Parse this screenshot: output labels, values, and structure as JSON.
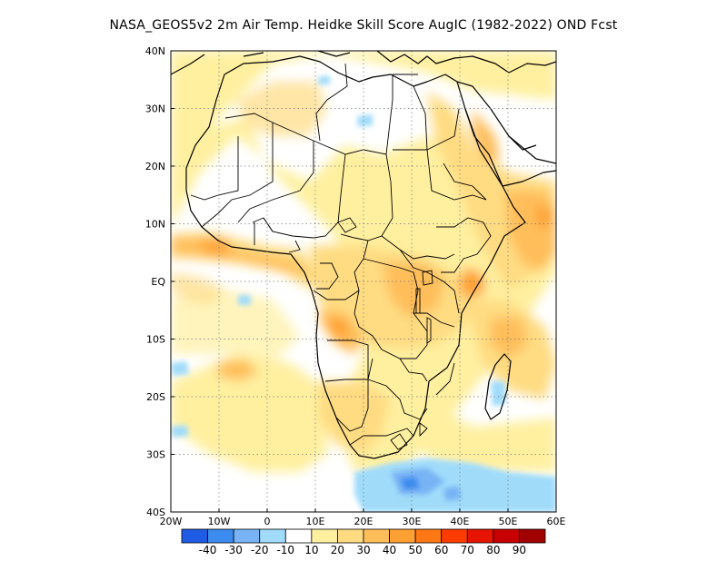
{
  "title": "NASA_GEOS5v2  2m Air Temp. Heidke Skill Score AugIC (1982-2022) OND Fcst",
  "map": {
    "region": "Africa",
    "lon_range": [
      -20,
      60
    ],
    "lat_range": [
      -40,
      40
    ],
    "lon_ticks": [
      {
        "value": -20,
        "label": "20W"
      },
      {
        "value": -10,
        "label": "10W"
      },
      {
        "value": 0,
        "label": "0"
      },
      {
        "value": 10,
        "label": "10E"
      },
      {
        "value": 20,
        "label": "20E"
      },
      {
        "value": 30,
        "label": "30E"
      },
      {
        "value": 40,
        "label": "40E"
      },
      {
        "value": 50,
        "label": "50E"
      },
      {
        "value": 60,
        "label": "60E"
      }
    ],
    "lat_ticks": [
      {
        "value": 40,
        "label": "40N"
      },
      {
        "value": 30,
        "label": "30N"
      },
      {
        "value": 20,
        "label": "20N"
      },
      {
        "value": 10,
        "label": "10N"
      },
      {
        "value": 0,
        "label": "EQ"
      },
      {
        "value": -10,
        "label": "10S"
      },
      {
        "value": -20,
        "label": "20S"
      },
      {
        "value": -30,
        "label": "30S"
      },
      {
        "value": -40,
        "label": "40S"
      }
    ],
    "grid": true
  },
  "colorbar": {
    "colors": [
      "#1e5ce6",
      "#3c8cf0",
      "#78b4f5",
      "#a0dcfa",
      "#ffffff",
      "#fff0a0",
      "#ffdc82",
      "#ffbe5a",
      "#ffa032",
      "#ff7814",
      "#ff3c00",
      "#e61400",
      "#c80000",
      "#a00000"
    ],
    "labels": [
      "-40",
      "-30",
      "-20",
      "-10",
      "10",
      "20",
      "30",
      "40",
      "50",
      "60",
      "70",
      "80",
      "90"
    ]
  }
}
